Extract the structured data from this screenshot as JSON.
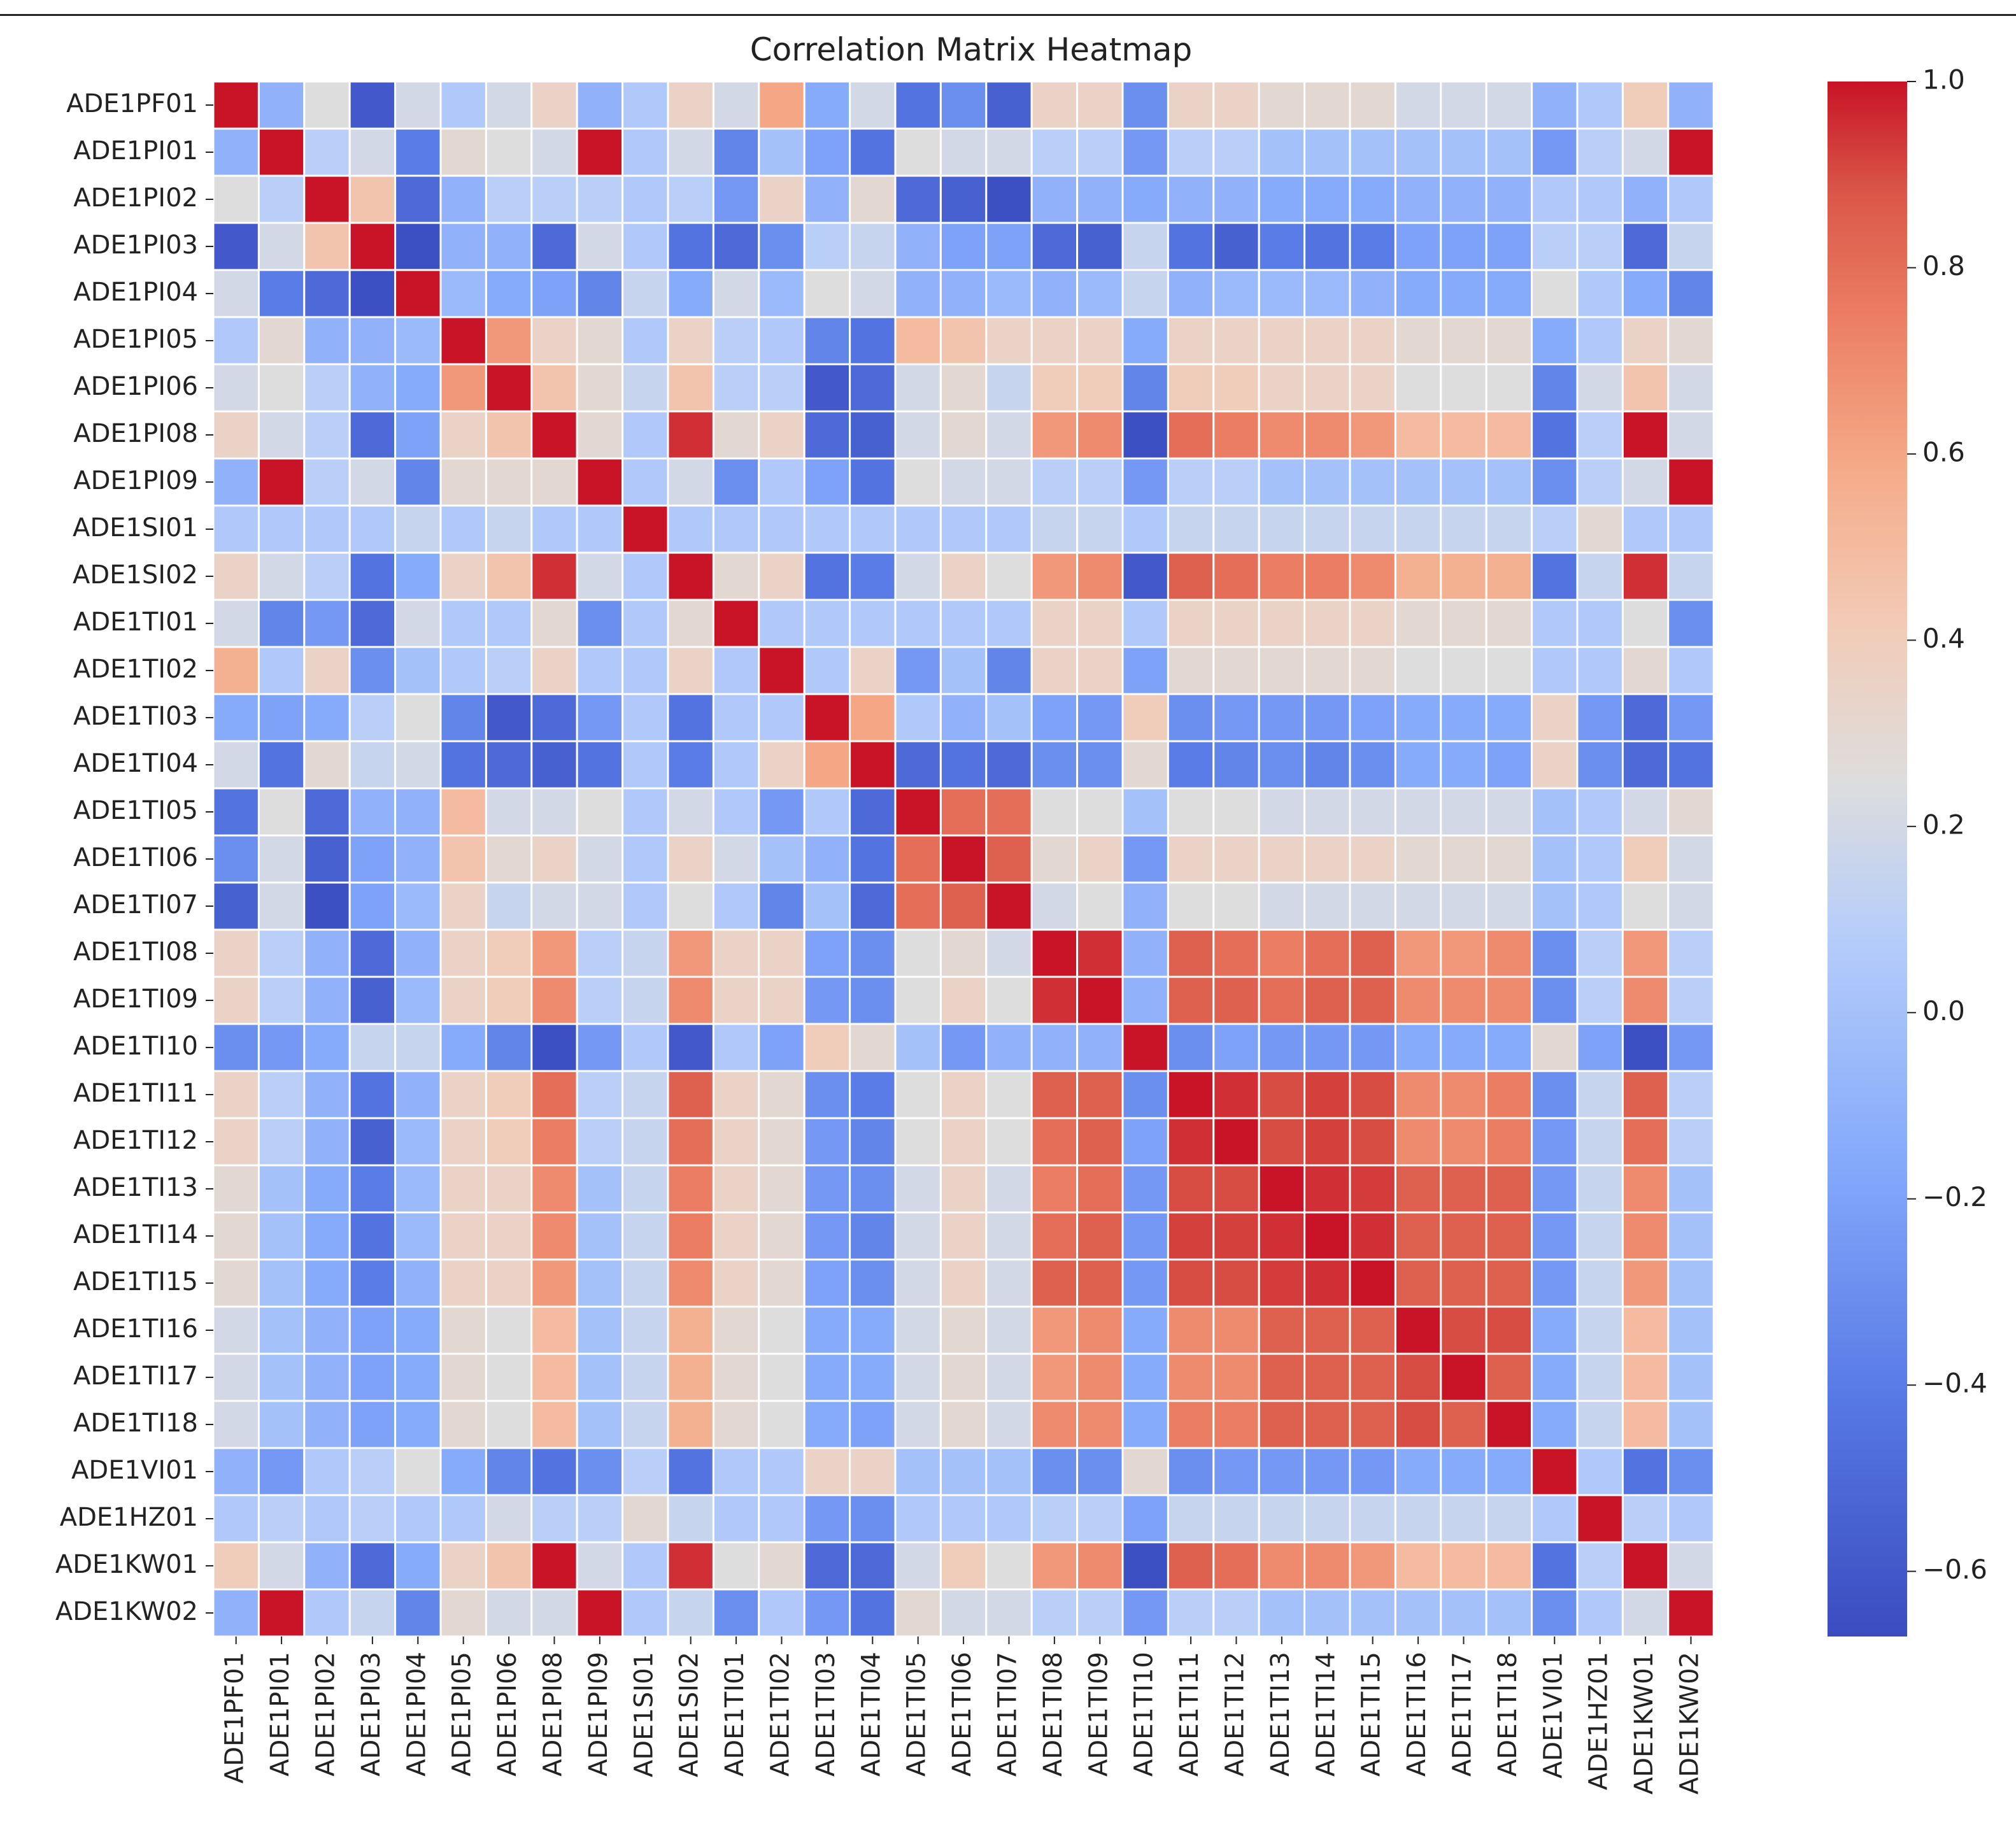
{
  "chart_data": {
    "type": "heatmap",
    "title": "Correlation Matrix Heatmap",
    "row_labels": [
      "ADE1PF01",
      "ADE1PI01",
      "ADE1PI02",
      "ADE1PI03",
      "ADE1PI04",
      "ADE1PI05",
      "ADE1PI06",
      "ADE1PI08",
      "ADE1PI09",
      "ADE1SI01",
      "ADE1SI02",
      "ADE1TI01",
      "ADE1TI02",
      "ADE1TI03",
      "ADE1TI04",
      "ADE1TI05",
      "ADE1TI06",
      "ADE1TI07",
      "ADE1TI08",
      "ADE1TI09",
      "ADE1TI10",
      "ADE1TI11",
      "ADE1TI12",
      "ADE1TI13",
      "ADE1TI14",
      "ADE1TI15",
      "ADE1TI16",
      "ADE1TI17",
      "ADE1TI18",
      "ADE1VI01",
      "ADE1HZ01",
      "ADE1KW01",
      "ADE1KW02"
    ],
    "col_labels": [
      "ADE1PF01",
      "ADE1PI01",
      "ADE1PI02",
      "ADE1PI03",
      "ADE1PI04",
      "ADE1PI05",
      "ADE1PI06",
      "ADE1PI08",
      "ADE1PI09",
      "ADE1SI01",
      "ADE1SI02",
      "ADE1TI01",
      "ADE1TI02",
      "ADE1TI03",
      "ADE1TI04",
      "ADE1TI05",
      "ADE1TI06",
      "ADE1TI07",
      "ADE1TI08",
      "ADE1TI09",
      "ADE1TI10",
      "ADE1TI11",
      "ADE1TI12",
      "ADE1TI13",
      "ADE1TI14",
      "ADE1TI15",
      "ADE1TI16",
      "ADE1TI17",
      "ADE1TI18",
      "ADE1VI01",
      "ADE1HZ01",
      "ADE1KW01",
      "ADE1KW02"
    ],
    "colormap": "coolwarm",
    "vmin": -0.67,
    "vmax": 1.0,
    "colorbar_ticks": [
      1.0,
      0.8,
      0.6,
      0.4,
      0.2,
      0.0,
      -0.2,
      -0.4,
      -0.6
    ],
    "colorbar_tick_labels": [
      "1.0",
      "0.8",
      "0.6",
      "0.4",
      "0.2",
      "0.0",
      "−0.2",
      "−0.4",
      "−0.6"
    ],
    "values": [
      [
        1.0,
        -0.1,
        0.25,
        -0.6,
        0.2,
        0.05,
        0.2,
        0.35,
        -0.1,
        0.05,
        0.35,
        0.2,
        0.6,
        -0.15,
        0.2,
        -0.45,
        -0.3,
        -0.55,
        0.35,
        0.35,
        -0.3,
        0.35,
        0.35,
        0.3,
        0.3,
        0.3,
        0.2,
        0.2,
        0.2,
        -0.1,
        0.05,
        0.4,
        -0.1
      ],
      [
        -0.1,
        1.0,
        0.1,
        0.2,
        -0.4,
        0.3,
        0.25,
        0.2,
        1.0,
        0.05,
        0.2,
        -0.35,
        0.0,
        -0.2,
        -0.45,
        0.25,
        0.2,
        0.2,
        0.1,
        0.1,
        -0.25,
        0.1,
        0.1,
        0.0,
        0.0,
        0.0,
        0.0,
        0.0,
        0.0,
        -0.25,
        0.1,
        0.2,
        1.0
      ],
      [
        0.25,
        0.1,
        1.0,
        0.45,
        -0.5,
        -0.1,
        0.1,
        0.1,
        0.1,
        0.05,
        0.1,
        -0.25,
        0.35,
        -0.1,
        0.3,
        -0.5,
        -0.55,
        -0.65,
        -0.1,
        -0.1,
        -0.15,
        -0.1,
        -0.1,
        -0.15,
        -0.15,
        -0.15,
        -0.1,
        -0.1,
        -0.1,
        0.05,
        0.05,
        -0.1,
        0.05
      ],
      [
        -0.6,
        0.2,
        0.45,
        1.0,
        -0.65,
        -0.1,
        -0.1,
        -0.5,
        0.2,
        0.05,
        -0.45,
        -0.5,
        -0.3,
        0.1,
        0.15,
        -0.1,
        -0.2,
        -0.2,
        -0.5,
        -0.55,
        0.15,
        -0.45,
        -0.55,
        -0.4,
        -0.45,
        -0.4,
        -0.2,
        -0.2,
        -0.2,
        0.1,
        0.1,
        -0.5,
        0.15
      ],
      [
        0.2,
        -0.4,
        -0.5,
        -0.65,
        1.0,
        -0.05,
        -0.15,
        -0.2,
        -0.35,
        0.15,
        -0.15,
        0.2,
        -0.05,
        0.25,
        0.2,
        -0.1,
        -0.1,
        -0.05,
        -0.1,
        -0.05,
        0.15,
        -0.1,
        -0.05,
        -0.05,
        -0.05,
        -0.1,
        -0.15,
        -0.15,
        -0.15,
        0.25,
        0.05,
        -0.15,
        -0.35
      ],
      [
        0.05,
        0.3,
        -0.1,
        -0.1,
        -0.05,
        1.0,
        0.65,
        0.35,
        0.3,
        0.05,
        0.35,
        0.1,
        0.05,
        -0.35,
        -0.45,
        0.5,
        0.45,
        0.35,
        0.35,
        0.35,
        -0.15,
        0.35,
        0.35,
        0.35,
        0.35,
        0.35,
        0.3,
        0.3,
        0.3,
        -0.15,
        0.05,
        0.35,
        0.3
      ],
      [
        0.2,
        0.25,
        0.1,
        -0.1,
        -0.15,
        0.65,
        1.0,
        0.45,
        0.3,
        0.15,
        0.45,
        0.1,
        0.1,
        -0.6,
        -0.5,
        0.2,
        0.3,
        0.15,
        0.4,
        0.4,
        -0.35,
        0.4,
        0.4,
        0.35,
        0.35,
        0.35,
        0.25,
        0.25,
        0.25,
        -0.35,
        0.2,
        0.45,
        0.2
      ],
      [
        0.35,
        0.2,
        0.1,
        -0.5,
        -0.2,
        0.35,
        0.45,
        1.0,
        0.3,
        0.05,
        0.95,
        0.3,
        0.35,
        -0.5,
        -0.55,
        0.2,
        0.3,
        0.2,
        0.65,
        0.7,
        -0.65,
        0.8,
        0.75,
        0.7,
        0.7,
        0.65,
        0.5,
        0.5,
        0.5,
        -0.45,
        0.1,
        1.0,
        0.2
      ],
      [
        -0.1,
        1.0,
        0.1,
        0.2,
        -0.35,
        0.3,
        0.3,
        0.3,
        1.0,
        0.05,
        0.2,
        -0.3,
        0.05,
        -0.2,
        -0.45,
        0.25,
        0.2,
        0.2,
        0.1,
        0.1,
        -0.25,
        0.1,
        0.1,
        0.0,
        0.0,
        0.0,
        0.0,
        0.0,
        0.0,
        -0.3,
        0.1,
        0.2,
        1.0
      ],
      [
        0.05,
        0.05,
        0.05,
        0.05,
        0.15,
        0.05,
        0.15,
        0.05,
        0.05,
        1.0,
        0.05,
        0.05,
        0.05,
        0.05,
        0.05,
        0.05,
        0.05,
        0.05,
        0.15,
        0.15,
        0.05,
        0.15,
        0.15,
        0.15,
        0.15,
        0.15,
        0.15,
        0.15,
        0.15,
        0.1,
        0.3,
        0.05,
        0.05
      ],
      [
        0.35,
        0.2,
        0.1,
        -0.45,
        -0.15,
        0.35,
        0.45,
        0.95,
        0.2,
        0.05,
        1.0,
        0.3,
        0.35,
        -0.45,
        -0.4,
        0.2,
        0.35,
        0.25,
        0.65,
        0.7,
        -0.6,
        0.85,
        0.8,
        0.75,
        0.75,
        0.7,
        0.55,
        0.55,
        0.55,
        -0.45,
        0.15,
        0.95,
        0.15
      ],
      [
        0.2,
        -0.35,
        -0.25,
        -0.5,
        0.2,
        0.05,
        0.05,
        0.3,
        -0.3,
        0.05,
        0.3,
        1.0,
        0.05,
        0.05,
        0.05,
        0.05,
        0.05,
        0.05,
        0.35,
        0.35,
        0.05,
        0.35,
        0.35,
        0.35,
        0.35,
        0.35,
        0.3,
        0.3,
        0.3,
        0.05,
        0.05,
        0.25,
        -0.3
      ],
      [
        0.55,
        0.05,
        0.35,
        -0.3,
        0.0,
        0.05,
        0.1,
        0.35,
        0.05,
        0.05,
        0.35,
        0.05,
        1.0,
        0.05,
        0.35,
        -0.25,
        0.0,
        -0.35,
        0.35,
        0.35,
        -0.2,
        0.3,
        0.3,
        0.3,
        0.3,
        0.3,
        0.25,
        0.25,
        0.25,
        0.05,
        0.05,
        0.3,
        0.05
      ],
      [
        -0.15,
        -0.2,
        -0.15,
        0.1,
        0.25,
        -0.35,
        -0.6,
        -0.5,
        -0.25,
        0.05,
        -0.45,
        0.05,
        0.05,
        1.0,
        0.6,
        0.05,
        -0.1,
        0.0,
        -0.2,
        -0.25,
        0.4,
        -0.3,
        -0.25,
        -0.25,
        -0.25,
        -0.2,
        -0.15,
        -0.15,
        -0.15,
        0.35,
        -0.25,
        -0.5,
        -0.25
      ],
      [
        0.2,
        -0.45,
        0.3,
        0.15,
        0.2,
        -0.45,
        -0.5,
        -0.55,
        -0.45,
        0.05,
        -0.4,
        0.05,
        0.35,
        0.6,
        1.0,
        -0.5,
        -0.45,
        -0.5,
        -0.3,
        -0.3,
        0.3,
        -0.4,
        -0.35,
        -0.3,
        -0.35,
        -0.3,
        -0.15,
        -0.15,
        -0.2,
        0.35,
        -0.3,
        -0.5,
        -0.45
      ],
      [
        -0.45,
        0.25,
        -0.5,
        -0.1,
        -0.1,
        0.5,
        0.2,
        0.2,
        0.25,
        0.05,
        0.2,
        0.05,
        -0.25,
        0.05,
        -0.5,
        1.0,
        0.8,
        0.8,
        0.25,
        0.25,
        0.0,
        0.25,
        0.25,
        0.2,
        0.2,
        0.2,
        0.2,
        0.2,
        0.2,
        0.0,
        0.05,
        0.2,
        0.3
      ],
      [
        -0.3,
        0.2,
        -0.55,
        -0.2,
        -0.1,
        0.45,
        0.3,
        0.35,
        0.2,
        0.05,
        0.35,
        0.2,
        0.0,
        -0.1,
        -0.45,
        0.8,
        1.0,
        0.85,
        0.3,
        0.35,
        -0.25,
        0.35,
        0.35,
        0.35,
        0.35,
        0.35,
        0.3,
        0.3,
        0.3,
        0.0,
        0.05,
        0.4,
        0.2
      ],
      [
        -0.55,
        0.2,
        -0.65,
        -0.2,
        -0.05,
        0.35,
        0.15,
        0.2,
        0.2,
        0.05,
        0.25,
        0.05,
        -0.35,
        0.0,
        -0.5,
        0.8,
        0.85,
        1.0,
        0.2,
        0.25,
        -0.1,
        0.25,
        0.25,
        0.2,
        0.2,
        0.2,
        0.2,
        0.2,
        0.2,
        0.0,
        0.05,
        0.25,
        0.2
      ],
      [
        0.35,
        0.1,
        -0.1,
        -0.5,
        -0.1,
        0.35,
        0.4,
        0.65,
        0.1,
        0.15,
        0.65,
        0.35,
        0.35,
        -0.2,
        -0.3,
        0.25,
        0.3,
        0.2,
        1.0,
        0.95,
        -0.1,
        0.85,
        0.8,
        0.75,
        0.8,
        0.85,
        0.65,
        0.65,
        0.7,
        -0.3,
        0.1,
        0.65,
        0.1
      ],
      [
        0.35,
        0.1,
        -0.1,
        -0.55,
        -0.05,
        0.35,
        0.4,
        0.7,
        0.1,
        0.15,
        0.7,
        0.35,
        0.35,
        -0.25,
        -0.3,
        0.25,
        0.35,
        0.25,
        0.95,
        1.0,
        -0.1,
        0.85,
        0.85,
        0.8,
        0.85,
        0.85,
        0.7,
        0.7,
        0.7,
        -0.3,
        0.1,
        0.7,
        0.1
      ],
      [
        -0.3,
        -0.25,
        -0.15,
        0.15,
        0.15,
        -0.15,
        -0.35,
        -0.65,
        -0.25,
        0.05,
        -0.6,
        0.05,
        -0.2,
        0.4,
        0.3,
        0.0,
        -0.25,
        -0.1,
        -0.1,
        -0.1,
        1.0,
        -0.3,
        -0.2,
        -0.25,
        -0.25,
        -0.25,
        -0.15,
        -0.15,
        -0.15,
        0.3,
        -0.2,
        -0.65,
        -0.25
      ],
      [
        0.35,
        0.1,
        -0.1,
        -0.45,
        -0.1,
        0.35,
        0.4,
        0.8,
        0.1,
        0.15,
        0.85,
        0.35,
        0.3,
        -0.3,
        -0.4,
        0.25,
        0.35,
        0.25,
        0.85,
        0.85,
        -0.3,
        1.0,
        0.95,
        0.9,
        0.92,
        0.9,
        0.7,
        0.7,
        0.75,
        -0.3,
        0.15,
        0.85,
        0.1
      ],
      [
        0.35,
        0.1,
        -0.1,
        -0.55,
        -0.05,
        0.35,
        0.4,
        0.75,
        0.1,
        0.15,
        0.8,
        0.35,
        0.3,
        -0.25,
        -0.35,
        0.25,
        0.35,
        0.25,
        0.8,
        0.85,
        -0.2,
        0.95,
        1.0,
        0.9,
        0.92,
        0.9,
        0.7,
        0.7,
        0.75,
        -0.25,
        0.15,
        0.8,
        0.1
      ],
      [
        0.3,
        0.0,
        -0.15,
        -0.4,
        -0.05,
        0.35,
        0.35,
        0.7,
        0.0,
        0.15,
        0.75,
        0.35,
        0.3,
        -0.25,
        -0.3,
        0.2,
        0.35,
        0.2,
        0.75,
        0.8,
        -0.25,
        0.9,
        0.9,
        1.0,
        0.95,
        0.93,
        0.85,
        0.85,
        0.85,
        -0.25,
        0.15,
        0.7,
        0.0
      ],
      [
        0.3,
        0.0,
        -0.15,
        -0.45,
        -0.05,
        0.35,
        0.35,
        0.7,
        0.0,
        0.15,
        0.75,
        0.35,
        0.3,
        -0.25,
        -0.35,
        0.2,
        0.35,
        0.2,
        0.8,
        0.85,
        -0.25,
        0.92,
        0.92,
        0.95,
        1.0,
        0.95,
        0.85,
        0.85,
        0.85,
        -0.25,
        0.15,
        0.7,
        0.0
      ],
      [
        0.3,
        0.0,
        -0.15,
        -0.4,
        -0.1,
        0.35,
        0.35,
        0.65,
        0.0,
        0.15,
        0.7,
        0.35,
        0.3,
        -0.2,
        -0.3,
        0.2,
        0.35,
        0.2,
        0.85,
        0.85,
        -0.25,
        0.9,
        0.9,
        0.93,
        0.95,
        1.0,
        0.85,
        0.85,
        0.85,
        -0.25,
        0.15,
        0.65,
        0.0
      ],
      [
        0.2,
        0.0,
        -0.1,
        -0.2,
        -0.15,
        0.3,
        0.25,
        0.5,
        0.0,
        0.15,
        0.55,
        0.3,
        0.25,
        -0.15,
        -0.15,
        0.2,
        0.3,
        0.2,
        0.65,
        0.7,
        -0.15,
        0.7,
        0.7,
        0.85,
        0.85,
        0.85,
        1.0,
        0.9,
        0.9,
        -0.15,
        0.15,
        0.5,
        0.0
      ],
      [
        0.2,
        0.0,
        -0.1,
        -0.2,
        -0.15,
        0.3,
        0.25,
        0.5,
        0.0,
        0.15,
        0.55,
        0.3,
        0.25,
        -0.15,
        -0.15,
        0.2,
        0.3,
        0.2,
        0.65,
        0.7,
        -0.15,
        0.7,
        0.7,
        0.85,
        0.85,
        0.85,
        0.9,
        1.0,
        0.85,
        -0.15,
        0.15,
        0.5,
        0.0
      ],
      [
        0.2,
        0.0,
        -0.1,
        -0.2,
        -0.15,
        0.3,
        0.25,
        0.5,
        0.0,
        0.15,
        0.55,
        0.3,
        0.25,
        -0.15,
        -0.2,
        0.2,
        0.3,
        0.2,
        0.7,
        0.7,
        -0.15,
        0.75,
        0.75,
        0.85,
        0.85,
        0.85,
        0.9,
        0.85,
        1.0,
        -0.15,
        0.15,
        0.5,
        0.0
      ],
      [
        -0.1,
        -0.25,
        0.05,
        0.1,
        0.25,
        -0.15,
        -0.35,
        -0.45,
        -0.3,
        0.1,
        -0.45,
        0.05,
        0.05,
        0.35,
        0.35,
        0.0,
        0.0,
        0.0,
        -0.3,
        -0.3,
        0.3,
        -0.3,
        -0.25,
        -0.25,
        -0.25,
        -0.25,
        -0.15,
        -0.15,
        -0.15,
        1.0,
        0.05,
        -0.45,
        -0.3
      ],
      [
        0.05,
        0.1,
        0.05,
        0.1,
        0.05,
        0.05,
        0.2,
        0.1,
        0.1,
        0.3,
        0.15,
        0.05,
        0.05,
        -0.25,
        -0.3,
        0.05,
        0.05,
        0.05,
        0.1,
        0.1,
        -0.2,
        0.15,
        0.15,
        0.15,
        0.15,
        0.15,
        0.15,
        0.15,
        0.15,
        0.05,
        1.0,
        0.1,
        0.05
      ],
      [
        0.4,
        0.2,
        -0.1,
        -0.5,
        -0.15,
        0.35,
        0.45,
        1.0,
        0.2,
        0.05,
        0.95,
        0.25,
        0.3,
        -0.5,
        -0.5,
        0.2,
        0.4,
        0.25,
        0.65,
        0.7,
        -0.65,
        0.85,
        0.8,
        0.7,
        0.7,
        0.65,
        0.5,
        0.5,
        0.5,
        -0.45,
        0.1,
        1.0,
        0.2
      ],
      [
        -0.1,
        1.0,
        0.05,
        0.15,
        -0.35,
        0.3,
        0.2,
        0.2,
        1.0,
        0.05,
        0.15,
        -0.3,
        0.05,
        -0.25,
        -0.45,
        0.3,
        0.2,
        0.2,
        0.1,
        0.1,
        -0.25,
        0.1,
        0.1,
        0.0,
        0.0,
        0.0,
        0.0,
        0.0,
        0.0,
        -0.3,
        0.05,
        0.2,
        1.0
      ]
    ]
  }
}
